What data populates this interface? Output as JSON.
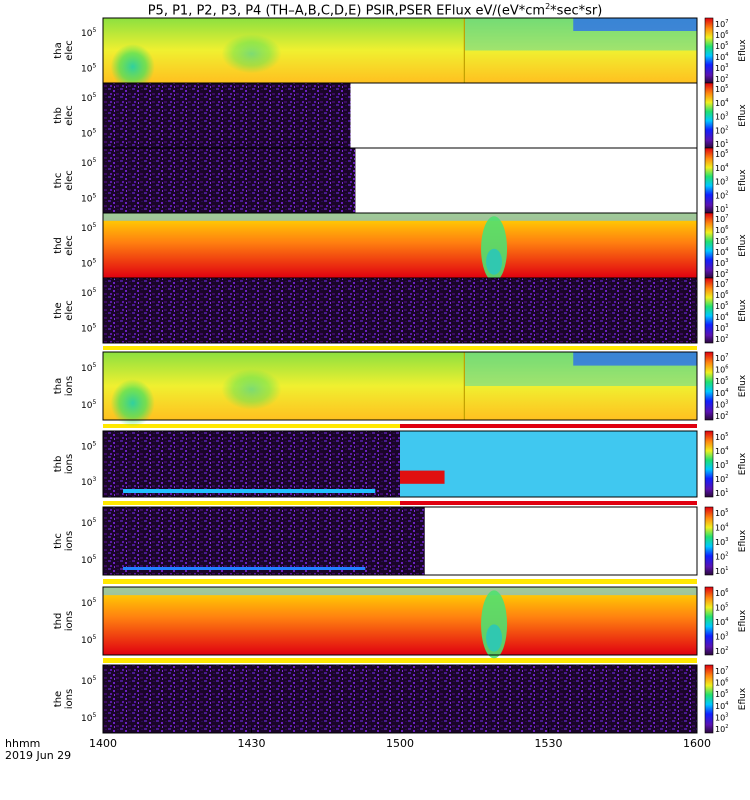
{
  "title": {
    "main_a": "P5, P1, P2, P3, P4 (TH–A,B,C,D,E) PSIR,PSER EFlux eV/(eV*cm",
    "sup_a": "2",
    "main_b": "*sec*sr)"
  },
  "time_axis": {
    "label": "hhmm",
    "date": "2019 Jun 29",
    "ticks": [
      "1400",
      "1430",
      "1500",
      "1530",
      "1600"
    ],
    "range_minutes": [
      0,
      120
    ]
  },
  "colorbar_label": "Eflux",
  "chart_data": [
    {
      "type": "heatmap",
      "panel": "tha-elec",
      "ylabel": [
        "tha",
        "elec"
      ],
      "yticks": [
        "10",
        "10"
      ],
      "yticks_sup": [
        "5",
        "5"
      ],
      "cbar_max_exp": 7,
      "cbar_min_exp": 2,
      "style": "smooth-green",
      "note": "discontinuity near 1515"
    },
    {
      "type": "heatmap",
      "panel": "thb-elec",
      "ylabel": [
        "thb",
        "elec"
      ],
      "yticks": [
        "10",
        "10"
      ],
      "yticks_sup": [
        "5",
        "5"
      ],
      "cbar_max_exp": 5,
      "cbar_min_exp": 1,
      "style": "noise",
      "data_end_minute": 50
    },
    {
      "type": "heatmap",
      "panel": "thc-elec",
      "ylabel": [
        "thc",
        "elec"
      ],
      "yticks": [
        "10",
        "10"
      ],
      "yticks_sup": [
        "5",
        "5"
      ],
      "cbar_max_exp": 5,
      "cbar_min_exp": 1,
      "style": "noise",
      "data_end_minute": 51
    },
    {
      "type": "heatmap",
      "panel": "thd-elec",
      "ylabel": [
        "thd",
        "elec"
      ],
      "yticks": [
        "10",
        "10"
      ],
      "yticks_sup": [
        "5",
        "5"
      ],
      "cbar_max_exp": 7,
      "cbar_min_exp": 2,
      "style": "smooth-red",
      "note": "green column near 1519"
    },
    {
      "type": "heatmap",
      "panel": "the-elec",
      "ylabel": [
        "the",
        "elec"
      ],
      "yticks": [
        "10",
        "10"
      ],
      "yticks_sup": [
        "5",
        "5"
      ],
      "cbar_max_exp": 7,
      "cbar_min_exp": 2,
      "style": "noise"
    },
    {
      "type": "heatmap",
      "panel": "tha-ions",
      "ylabel": [
        "tha",
        "ions"
      ],
      "yticks": [
        "10",
        "10"
      ],
      "yticks_sup": [
        "5",
        "5"
      ],
      "cbar_max_exp": 7,
      "cbar_min_exp": 2,
      "style": "smooth-green",
      "note": "discontinuity near 1515"
    },
    {
      "type": "heatmap",
      "panel": "thb-ions",
      "ylabel": [
        "thb",
        "ions"
      ],
      "yticks": [
        "10",
        "10"
      ],
      "yticks_sup": [
        "5",
        "3"
      ],
      "cbar_max_exp": 5,
      "cbar_min_exp": 1,
      "style": "noise-then-cyan",
      "data_end_minute": 60
    },
    {
      "type": "heatmap",
      "panel": "thc-ions",
      "ylabel": [
        "thc",
        "ions"
      ],
      "yticks": [
        "10",
        "10"
      ],
      "yticks_sup": [
        "5",
        "5"
      ],
      "cbar_max_exp": 5,
      "cbar_min_exp": 1,
      "style": "noise",
      "data_end_minute": 65
    },
    {
      "type": "heatmap",
      "panel": "thd-ions",
      "ylabel": [
        "thd",
        "ions"
      ],
      "yticks": [
        "10",
        "10"
      ],
      "yticks_sup": [
        "5",
        "5"
      ],
      "cbar_max_exp": 6,
      "cbar_min_exp": 2,
      "style": "smooth-red",
      "note": "green column near 1519"
    },
    {
      "type": "heatmap",
      "panel": "the-ions",
      "ylabel": [
        "the",
        "ions"
      ],
      "yticks": [
        "10",
        "10"
      ],
      "yticks_sup": [
        "5",
        "5"
      ],
      "cbar_max_exp": 7,
      "cbar_min_exp": 2,
      "style": "noise"
    }
  ]
}
